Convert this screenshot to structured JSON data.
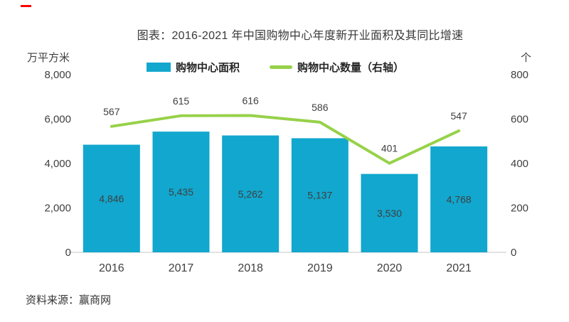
{
  "title": "图表：2016-2021 年中国购物中心年度新开业面积及其同比增速",
  "legend": [
    {
      "label": "购物中心面积",
      "color": "#12a7ce",
      "type": "bar"
    },
    {
      "label": "购物中心数量（右轴）",
      "color": "#97d14a",
      "type": "line"
    }
  ],
  "left_axis": {
    "unit": "万平方米",
    "ticks": [
      "8,000",
      "6,000",
      "4,000",
      "2,000",
      "0"
    ],
    "max": 8000
  },
  "right_axis": {
    "unit": "个",
    "ticks": [
      "800",
      "600",
      "400",
      "200",
      "0"
    ],
    "max": 800
  },
  "source": "资料来源：赢商网",
  "colors": {
    "bar": "#12a7ce",
    "line": "#97d14a",
    "red_mark": "#ff0000",
    "axis_line": "#d9d9d9",
    "label_text": "#3f3f3f"
  },
  "chart_data": {
    "type": "bar",
    "subtype": "bar+line combo, line on secondary axis",
    "categories": [
      "2016",
      "2017",
      "2018",
      "2019",
      "2020",
      "2021"
    ],
    "series": [
      {
        "name": "购物中心面积",
        "type": "bar",
        "axis": "left",
        "color": "#12a7ce",
        "values": [
          4846,
          5435,
          5262,
          5137,
          3530,
          4768
        ],
        "labels": [
          "4,846",
          "5,435",
          "5,262",
          "5,137",
          "3,530",
          "4,768"
        ]
      },
      {
        "name": "购物中心数量（右轴）",
        "type": "line",
        "axis": "right",
        "color": "#97d14a",
        "values": [
          567,
          615,
          616,
          586,
          401,
          547
        ],
        "labels": [
          "567",
          "615",
          "616",
          "586",
          "401",
          "547"
        ]
      }
    ],
    "title": "图表：2016-2021 年中国购物中心年度新开业面积及其同比增速",
    "xlabel": "",
    "ylabel_left": "万平方米",
    "ylabel_right": "个",
    "left_ylim": [
      0,
      8000
    ],
    "right_ylim": [
      0,
      800
    ],
    "grid": false,
    "legend_position": "top"
  }
}
